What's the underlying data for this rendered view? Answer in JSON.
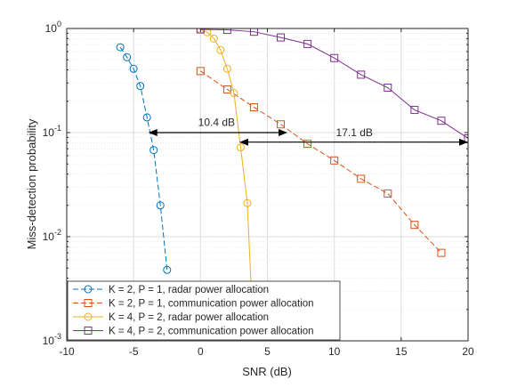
{
  "chart_data": {
    "type": "line",
    "xlabel": "SNR (dB)",
    "ylabel": "Miss-detection probability",
    "xlim": [
      -10,
      20
    ],
    "ylim": [
      0.001,
      1
    ],
    "yscale": "log",
    "grid": true,
    "legend_position": "bottom-left",
    "x_ticks": [
      -10,
      -5,
      0,
      5,
      10,
      15,
      20
    ],
    "x_tick_labels": [
      "-10",
      "-5",
      "0",
      "5",
      "10",
      "15",
      "20"
    ],
    "y_ticks": [
      0.001,
      0.01,
      0.1,
      1
    ],
    "y_tick_labels": [
      {
        "base": "10",
        "exp": "-3"
      },
      {
        "base": "10",
        "exp": "-2"
      },
      {
        "base": "10",
        "exp": "-1"
      },
      {
        "base": "10",
        "exp": "0"
      }
    ],
    "series": [
      {
        "name": "K = 2, P = 1, radar power allocation",
        "color": "#0072BD",
        "dash": "dashed",
        "marker": "circle",
        "x": [
          -6,
          -5.5,
          -5,
          -4.5,
          -4,
          -3.5,
          -3,
          -2.5
        ],
        "y": [
          0.66,
          0.53,
          0.41,
          0.28,
          0.14,
          0.068,
          0.02,
          0.0048
        ]
      },
      {
        "name": "K = 2, P = 1, communication power allocation",
        "color": "#D95319",
        "dash": "dashed",
        "marker": "square",
        "x": [
          0,
          2,
          4,
          6,
          8,
          10,
          12,
          14,
          16,
          18
        ],
        "y": [
          0.39,
          0.26,
          0.175,
          0.12,
          0.078,
          0.054,
          0.036,
          0.026,
          0.013,
          0.007
        ]
      },
      {
        "name": "K = 4, P = 2, radar power allocation",
        "color": "#EDB120",
        "dash": "solid",
        "marker": "circle",
        "x": [
          0,
          0.5,
          1,
          1.5,
          2,
          2.5,
          3,
          3.5,
          4
        ],
        "y": [
          0.98,
          0.92,
          0.8,
          0.62,
          0.41,
          0.24,
          0.072,
          0.021,
          0.0008
        ]
      },
      {
        "name": "K = 4, P = 2, communication power allocation",
        "color": "#7E2F8E",
        "dash": "solid",
        "marker": "square",
        "x": [
          0,
          2,
          4,
          6,
          8,
          10,
          12,
          14,
          16,
          18,
          20
        ],
        "y": [
          0.98,
          0.97,
          0.93,
          0.82,
          0.71,
          0.52,
          0.36,
          0.27,
          0.165,
          0.13,
          0.088
        ]
      }
    ],
    "annotations": [
      {
        "text": "10.4 dB",
        "x1": -3.9,
        "x2": 6.5,
        "y": 0.1,
        "label_x": 1.2,
        "label_y": 0.125
      },
      {
        "text": "17.1 dB",
        "x1": 2.9,
        "x2": 20,
        "y": 0.081,
        "label_x": 11.5,
        "label_y": 0.1
      }
    ]
  }
}
